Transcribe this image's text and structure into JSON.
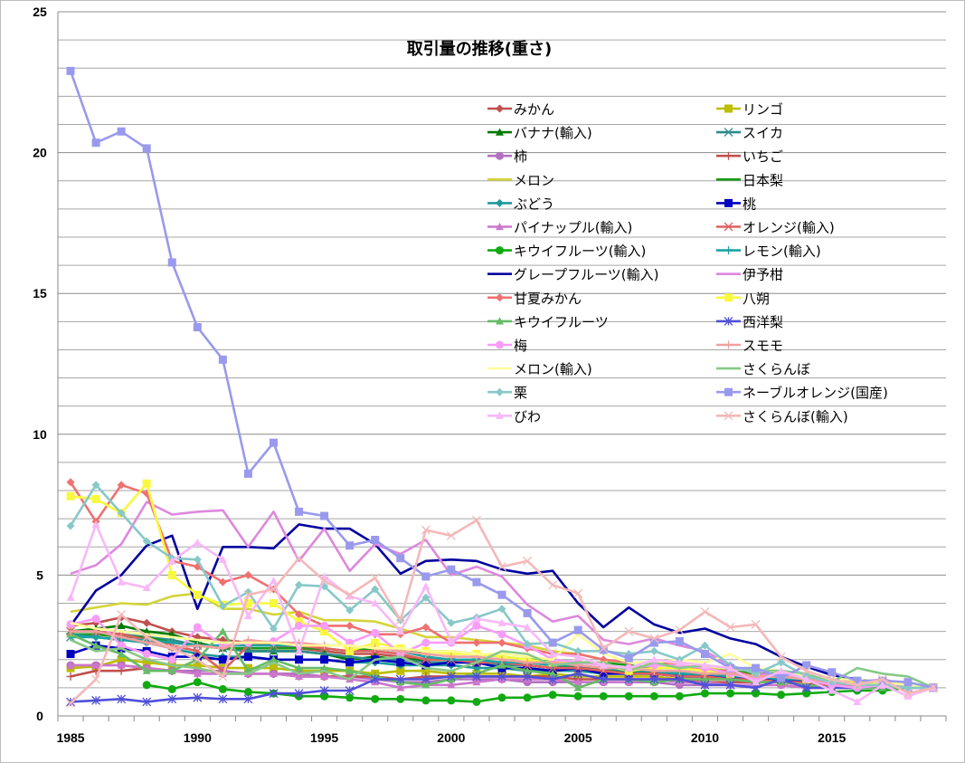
{
  "chart_data": {
    "type": "line",
    "title": "取引量の推移(重さ)",
    "xlabel": "",
    "ylabel": "",
    "ylim": [
      0,
      25
    ],
    "yticks": [
      0,
      5,
      10,
      15,
      20,
      25
    ],
    "xtick_labels": [
      "1985",
      "1990",
      "1995",
      "2000",
      "2005",
      "2010",
      "2015"
    ],
    "x": [
      1985,
      1986,
      1987,
      1988,
      1989,
      1990,
      1991,
      1992,
      1993,
      1994,
      1995,
      1996,
      1997,
      1998,
      1999,
      2000,
      2001,
      2002,
      2003,
      2004,
      2005,
      2006,
      2007,
      2008,
      2009,
      2010,
      2011,
      2012,
      2013,
      2014,
      2015,
      2016,
      2017,
      2018,
      2019
    ],
    "grid": true,
    "legend": "top-right",
    "series": [
      {
        "name": "みかん",
        "color": "#c0504d",
        "marker": "diamond",
        "values": [
          3.2,
          3.3,
          3.5,
          3.3,
          3.0,
          2.8,
          2.7,
          2.6,
          2.5,
          2.4,
          2.3,
          2.2,
          2.2,
          2.1,
          2.0,
          2.0,
          1.9,
          1.9,
          1.8,
          1.7,
          1.7,
          1.6,
          1.6,
          1.5,
          1.5,
          1.5,
          1.4,
          1.4,
          1.3,
          1.3,
          1.2,
          1.1,
          1.1,
          1.0,
          1.0
        ]
      },
      {
        "name": "リンゴ",
        "color": "#bdbd00",
        "marker": "square",
        "values": [
          1.7,
          1.75,
          2.0,
          1.9,
          1.8,
          1.8,
          1.7,
          1.7,
          1.7,
          1.6,
          1.6,
          1.6,
          1.5,
          1.6,
          1.6,
          1.5,
          1.5,
          1.5,
          1.4,
          1.5,
          1.4,
          1.4,
          1.4,
          1.4,
          1.3,
          1.3,
          1.3,
          1.2,
          1.2,
          1.2,
          1.1,
          1.1,
          1.0,
          1.0,
          1.0
        ]
      },
      {
        "name": "バナナ(輸入)",
        "color": "#007a00",
        "marker": "triangle",
        "values": [
          3.0,
          3.1,
          3.2,
          3.0,
          2.9,
          2.6,
          2.4,
          2.3,
          2.3,
          2.3,
          2.2,
          2.0,
          2.1,
          2.0,
          2.0,
          2.0,
          1.9,
          1.9,
          1.8,
          1.7,
          1.8,
          1.6,
          1.6,
          1.5,
          1.5,
          1.4,
          1.4,
          1.3,
          1.3,
          1.3,
          1.2,
          1.1,
          1.1,
          1.0,
          1.0
        ]
      },
      {
        "name": "スイカ",
        "color": "#2e8b8b",
        "marker": "x",
        "values": [
          2.8,
          2.9,
          2.9,
          2.8,
          2.7,
          2.5,
          2.4,
          2.3,
          2.3,
          2.3,
          2.2,
          2.1,
          2.0,
          2.0,
          1.9,
          1.9,
          1.9,
          1.8,
          1.8,
          1.7,
          1.7,
          1.6,
          1.5,
          1.5,
          1.5,
          1.4,
          1.4,
          1.3,
          1.3,
          1.2,
          1.2,
          1.1,
          1.1,
          1.0,
          1.0
        ]
      },
      {
        "name": "柿",
        "color": "#b370c2",
        "marker": "circle",
        "values": [
          1.8,
          1.8,
          1.8,
          1.7,
          1.6,
          1.6,
          1.6,
          1.5,
          1.5,
          1.5,
          1.4,
          1.4,
          1.3,
          1.2,
          1.2,
          1.3,
          1.3,
          1.3,
          1.2,
          1.2,
          1.2,
          1.2,
          1.2,
          1.2,
          1.1,
          1.1,
          1.1,
          1.1,
          1.1,
          1.0,
          1.0,
          1.0,
          1.0,
          1.0,
          1.0
        ]
      },
      {
        "name": "いちご",
        "color": "#c0504d",
        "marker": "plus",
        "values": [
          1.4,
          1.6,
          1.6,
          1.7,
          1.6,
          1.5,
          1.5,
          1.5,
          1.5,
          1.4,
          1.4,
          1.4,
          1.4,
          1.3,
          1.4,
          1.4,
          1.4,
          1.4,
          1.4,
          1.4,
          1.3,
          1.3,
          1.3,
          1.3,
          1.3,
          1.2,
          1.2,
          1.2,
          1.2,
          1.1,
          1.1,
          1.1,
          1.0,
          1.0,
          1.0
        ]
      },
      {
        "name": "メロン",
        "color": "#d4d43a",
        "marker": "none",
        "values": [
          3.7,
          3.85,
          4.0,
          3.95,
          4.25,
          4.35,
          3.8,
          3.8,
          3.6,
          3.7,
          3.4,
          3.4,
          3.35,
          3.1,
          2.8,
          2.8,
          2.7,
          2.6,
          2.5,
          2.3,
          2.2,
          2.0,
          1.9,
          1.9,
          1.8,
          1.7,
          1.6,
          1.5,
          1.4,
          1.3,
          1.2,
          1.1,
          1.1,
          1.0,
          1.0
        ]
      },
      {
        "name": "日本梨",
        "color": "#1a9a1a",
        "marker": "none",
        "values": [
          2.9,
          2.9,
          2.8,
          2.8,
          2.6,
          2.5,
          2.4,
          2.4,
          2.4,
          2.4,
          2.4,
          2.3,
          2.4,
          2.3,
          2.3,
          2.3,
          2.2,
          2.1,
          2.0,
          2.0,
          1.9,
          1.9,
          1.8,
          1.7,
          1.7,
          1.6,
          1.6,
          1.5,
          1.5,
          1.4,
          1.3,
          1.2,
          1.1,
          1.0,
          1.0
        ]
      },
      {
        "name": "ぶどう",
        "color": "#1f9a9a",
        "marker": "diamond",
        "values": [
          2.9,
          2.8,
          2.7,
          2.6,
          2.4,
          2.2,
          2.1,
          2.1,
          2.0,
          2.0,
          2.0,
          1.9,
          1.9,
          1.8,
          1.8,
          1.8,
          1.7,
          1.7,
          1.6,
          1.6,
          1.6,
          1.5,
          1.5,
          1.5,
          1.4,
          1.4,
          1.4,
          1.3,
          1.3,
          1.2,
          1.2,
          1.1,
          1.1,
          1.0,
          1.0
        ]
      },
      {
        "name": "桃",
        "color": "#0000c0",
        "marker": "square",
        "values": [
          2.2,
          2.5,
          2.4,
          2.3,
          2.1,
          2.1,
          2.0,
          2.1,
          2.0,
          2.0,
          2.0,
          1.9,
          2.0,
          1.9,
          1.8,
          1.9,
          1.9,
          1.7,
          1.7,
          1.6,
          1.7,
          1.5,
          1.5,
          1.5,
          1.4,
          1.4,
          1.4,
          1.3,
          1.3,
          1.2,
          1.2,
          1.1,
          1.1,
          1.0,
          1.0
        ]
      },
      {
        "name": "パイナップル(輸入)",
        "color": "#cc77cc",
        "marker": "triangle",
        "values": [
          1.8,
          1.8,
          1.8,
          1.7,
          1.6,
          1.5,
          1.5,
          1.5,
          1.5,
          1.4,
          1.4,
          1.3,
          1.2,
          1.0,
          1.1,
          1.1,
          1.2,
          1.3,
          1.3,
          1.3,
          1.2,
          1.2,
          1.2,
          1.3,
          1.2,
          1.2,
          1.1,
          1.1,
          1.1,
          1.0,
          1.0,
          1.0,
          1.0,
          1.0,
          1.0
        ]
      },
      {
        "name": "オレンジ(輸入)",
        "color": "#e06060",
        "marker": "x",
        "values": [
          3.0,
          3.0,
          2.9,
          2.7,
          2.5,
          2.3,
          1.6,
          2.5,
          2.5,
          2.5,
          2.4,
          2.3,
          2.3,
          2.2,
          2.0,
          2.0,
          1.9,
          1.9,
          1.8,
          1.7,
          1.7,
          1.6,
          1.5,
          1.5,
          1.4,
          1.4,
          1.3,
          1.3,
          1.2,
          1.2,
          1.1,
          1.1,
          1.0,
          1.0,
          1.0
        ]
      },
      {
        "name": "キウイフルーツ(輸入)",
        "color": "#11aa11",
        "marker": "circle",
        "values": [
          null,
          null,
          null,
          1.1,
          0.95,
          1.2,
          0.95,
          0.85,
          0.8,
          0.7,
          0.7,
          0.65,
          0.6,
          0.6,
          0.55,
          0.55,
          0.5,
          0.65,
          0.65,
          0.75,
          0.7,
          0.7,
          0.7,
          0.7,
          0.7,
          0.8,
          0.8,
          0.8,
          0.75,
          0.8,
          0.85,
          0.9,
          0.9,
          1.0,
          1.0
        ]
      },
      {
        "name": "レモン(輸入)",
        "color": "#1aa3a3",
        "marker": "plus",
        "values": [
          2.8,
          2.8,
          2.7,
          2.7,
          2.6,
          2.5,
          2.5,
          2.5,
          2.5,
          2.5,
          2.5,
          2.5,
          2.4,
          2.3,
          2.1,
          2.0,
          2.0,
          1.9,
          1.9,
          1.8,
          1.8,
          1.7,
          1.6,
          1.6,
          1.5,
          1.5,
          1.4,
          1.4,
          1.3,
          1.3,
          1.2,
          1.1,
          1.1,
          1.0,
          1.0
        ]
      },
      {
        "name": "グレープフルーツ(輸入)",
        "color": "#0000a0",
        "marker": "none",
        "values": [
          3.2,
          4.45,
          5.0,
          6.05,
          6.4,
          3.8,
          6.0,
          6.0,
          5.95,
          6.8,
          6.65,
          6.65,
          6.1,
          5.05,
          5.5,
          5.55,
          5.5,
          5.2,
          5.05,
          5.15,
          4.0,
          3.15,
          3.85,
          3.25,
          2.95,
          3.1,
          2.75,
          2.55,
          2.1,
          1.75,
          1.45,
          1.3,
          1.2,
          1.1,
          1.0
        ]
      },
      {
        "name": "伊予柑",
        "color": "#dd88dd",
        "marker": "none",
        "values": [
          5.05,
          5.35,
          6.1,
          7.6,
          7.15,
          7.25,
          7.3,
          6.0,
          7.25,
          5.5,
          6.65,
          5.15,
          6.1,
          5.75,
          6.25,
          5.0,
          5.3,
          4.95,
          3.95,
          3.35,
          3.55,
          2.7,
          2.55,
          2.75,
          2.5,
          2.3,
          1.8,
          1.5,
          1.45,
          1.4,
          1.3,
          1.2,
          1.3,
          1.1,
          1.0
        ]
      },
      {
        "name": "甘夏みかん",
        "color": "#f07070",
        "marker": "diamond",
        "values": [
          8.3,
          6.9,
          8.2,
          7.9,
          5.5,
          5.3,
          4.75,
          5.0,
          4.5,
          3.6,
          3.2,
          3.2,
          2.9,
          2.9,
          3.15,
          2.6,
          2.6,
          2.6,
          2.4,
          2.2,
          2.2,
          2.0,
          1.9,
          1.9,
          1.8,
          1.6,
          1.6,
          1.4,
          1.4,
          1.3,
          1.2,
          1.1,
          1.1,
          1.0,
          1.0
        ]
      },
      {
        "name": "八朔",
        "color": "#f8f840",
        "marker": "square",
        "values": [
          7.8,
          7.7,
          7.2,
          8.25,
          5.0,
          4.3,
          3.95,
          4.0,
          4.0,
          3.35,
          3.0,
          2.3,
          2.6,
          2.4,
          2.3,
          2.2,
          2.2,
          2.1,
          2.0,
          1.9,
          1.9,
          1.8,
          1.6,
          1.7,
          1.7,
          1.6,
          1.5,
          1.4,
          1.4,
          1.3,
          1.2,
          1.2,
          1.1,
          1.0,
          1.0
        ]
      },
      {
        "name": "キウイフルーツ",
        "color": "#66bb66",
        "marker": "triangle",
        "values": [
          2.9,
          2.5,
          2.2,
          1.6,
          1.6,
          2.0,
          3.0,
          1.6,
          2.0,
          1.7,
          1.7,
          1.6,
          1.4,
          1.2,
          1.1,
          1.3,
          1.5,
          1.8,
          1.6,
          1.5,
          1.0,
          1.3,
          1.3,
          1.2,
          1.3,
          1.3,
          1.3,
          1.2,
          1.2,
          1.1,
          1.0,
          1.0,
          1.0,
          1.0,
          1.0
        ]
      },
      {
        "name": "西洋梨",
        "color": "#5050d8",
        "marker": "asterisk",
        "values": [
          0.5,
          0.55,
          0.6,
          0.5,
          0.6,
          0.65,
          0.6,
          0.6,
          0.8,
          0.8,
          0.9,
          0.9,
          1.3,
          1.3,
          1.3,
          1.4,
          1.4,
          1.4,
          1.4,
          1.3,
          1.5,
          1.3,
          1.3,
          1.3,
          1.3,
          1.1,
          1.1,
          1.0,
          1.3,
          1.0,
          1.0,
          1.0,
          1.1,
          1.0,
          1.0
        ]
      },
      {
        "name": "梅",
        "color": "#f89cf8",
        "marker": "circle",
        "values": [
          3.25,
          3.45,
          2.5,
          2.2,
          2.0,
          3.15,
          2.5,
          2.6,
          2.65,
          3.2,
          3.2,
          2.6,
          2.95,
          2.2,
          2.6,
          2.6,
          3.2,
          2.9,
          2.5,
          2.0,
          1.9,
          1.8,
          1.7,
          1.8,
          1.8,
          1.7,
          1.5,
          1.3,
          1.5,
          1.3,
          1.1,
          1.0,
          1.1,
          1.0,
          1.0
        ]
      },
      {
        "name": "スモモ",
        "color": "#f0a0a0",
        "marker": "plus",
        "values": [
          3.0,
          3.0,
          2.8,
          2.6,
          2.4,
          2.5,
          2.4,
          2.7,
          2.6,
          2.6,
          2.5,
          2.5,
          2.4,
          2.3,
          2.2,
          2.1,
          2.1,
          2.0,
          1.9,
          1.9,
          1.8,
          1.7,
          1.7,
          1.6,
          1.6,
          1.5,
          1.5,
          1.4,
          1.4,
          1.3,
          1.2,
          1.1,
          1.1,
          1.0,
          1.0
        ]
      },
      {
        "name": "メロン(輸入)",
        "color": "#ffff99",
        "marker": "none",
        "values": [
          3.3,
          3.1,
          3.0,
          2.9,
          2.8,
          2.7,
          2.6,
          2.6,
          2.6,
          2.5,
          2.5,
          2.5,
          2.4,
          2.4,
          2.3,
          2.3,
          2.2,
          2.2,
          2.1,
          2.0,
          2.9,
          2.2,
          1.9,
          1.9,
          2.0,
          1.9,
          2.2,
          1.7,
          1.6,
          1.4,
          1.3,
          1.3,
          1.2,
          1.1,
          1.0
        ]
      },
      {
        "name": "さくらんぼ",
        "color": "#88c888",
        "marker": "none",
        "values": [
          2.7,
          2.3,
          2.4,
          2.0,
          1.8,
          1.7,
          1.5,
          1.5,
          1.9,
          1.5,
          1.6,
          1.3,
          2.0,
          2.1,
          1.7,
          1.6,
          1.9,
          2.3,
          2.2,
          1.8,
          1.9,
          1.9,
          1.6,
          1.9,
          1.7,
          1.8,
          1.7,
          1.6,
          1.6,
          1.5,
          1.2,
          1.7,
          1.5,
          1.4,
          1.0
        ]
      },
      {
        "name": "栗",
        "color": "#88c8c8",
        "marker": "diamond",
        "values": [
          6.75,
          8.2,
          7.2,
          6.2,
          5.6,
          5.55,
          3.9,
          4.4,
          3.1,
          4.65,
          4.6,
          3.75,
          4.5,
          3.4,
          4.2,
          3.3,
          3.5,
          3.8,
          2.55,
          2.6,
          2.3,
          2.3,
          2.2,
          2.3,
          2.0,
          2.5,
          1.8,
          1.5,
          1.9,
          1.4,
          1.2,
          1.1,
          1.1,
          1.0,
          1.0
        ]
      },
      {
        "name": "ネーブルオレンジ(国産)",
        "color": "#9999ee",
        "marker": "square",
        "values": [
          22.9,
          20.35,
          20.75,
          20.15,
          16.1,
          13.8,
          12.65,
          8.6,
          9.7,
          7.25,
          7.1,
          6.05,
          6.25,
          5.6,
          4.95,
          5.2,
          4.75,
          4.3,
          3.65,
          2.6,
          3.05,
          2.35,
          2.05,
          2.6,
          2.65,
          2.2,
          1.7,
          1.7,
          1.35,
          1.8,
          1.55,
          1.25,
          1.25,
          1.2,
          1.0
        ]
      },
      {
        "name": "びわ",
        "color": "#f8b8f8",
        "marker": "triangle",
        "values": [
          4.2,
          6.8,
          4.75,
          4.55,
          5.5,
          6.15,
          5.55,
          3.55,
          4.8,
          2.3,
          4.95,
          4.25,
          4.0,
          3.0,
          4.6,
          2.65,
          3.45,
          3.3,
          3.15,
          2.2,
          2.1,
          1.8,
          1.7,
          2.0,
          1.9,
          1.8,
          1.7,
          1.2,
          1.6,
          1.3,
          0.9,
          0.5,
          1.1,
          0.7,
          1.0
        ]
      },
      {
        "name": "さくらんぼ(輸入)",
        "color": "#f4b8b8",
        "marker": "x",
        "values": [
          0.45,
          1.3,
          3.6,
          2.8,
          2.4,
          2.0,
          1.4,
          4.3,
          4.5,
          5.6,
          4.8,
          4.3,
          4.9,
          3.4,
          6.6,
          6.4,
          6.95,
          5.3,
          5.5,
          4.65,
          4.35,
          2.4,
          3.0,
          2.75,
          3.05,
          3.7,
          3.15,
          3.25,
          2.1,
          1.6,
          1.3,
          1.1,
          1.3,
          0.8,
          1.0
        ]
      }
    ]
  }
}
